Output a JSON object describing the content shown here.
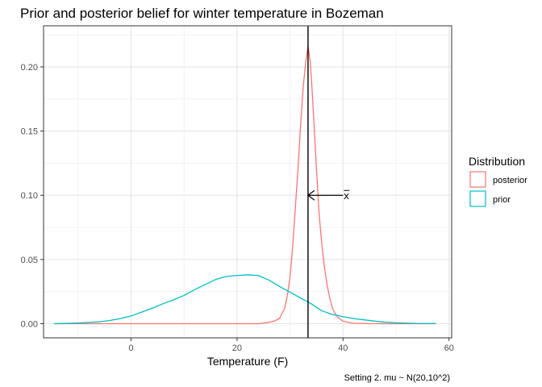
{
  "chart_data": {
    "type": "line",
    "title": "Prior and posterior belief for winter temperature in Bozeman",
    "xlabel": "Temperature (F)",
    "ylabel": "",
    "caption": "Setting 2. mu ~ N(20,10^2)",
    "xlim": [
      -16.5,
      60.5
    ],
    "ylim": [
      -0.011,
      0.232
    ],
    "x_ticks": [
      0,
      20,
      40,
      60
    ],
    "y_ticks": [
      0.0,
      0.05,
      0.1,
      0.15,
      0.2
    ],
    "y_tick_labels": [
      "0.00",
      "0.05",
      "0.10",
      "0.15",
      "0.20"
    ],
    "grid": true,
    "legend": {
      "title": "Distribution",
      "placement": "right",
      "entries": [
        {
          "label": "posterior",
          "color": "#F8766D"
        },
        {
          "label": "prior",
          "color": "#00BFC4"
        }
      ]
    },
    "vline": {
      "x": 33.4,
      "label": "x̄"
    },
    "annotation": {
      "text": "x",
      "overline": true,
      "arrow_from": [
        40,
        0.1
      ],
      "arrow_to": [
        33.4,
        0.1
      ]
    },
    "series": [
      {
        "name": "posterior",
        "color": "#F8766D",
        "x": [
          -14.5,
          -5,
          5,
          15,
          20,
          24,
          26,
          27,
          28,
          28.5,
          29,
          29.5,
          30,
          30.5,
          31,
          31.5,
          32,
          32.5,
          33,
          33.4,
          33.8,
          34.2,
          34.6,
          35,
          35.5,
          36,
          36.5,
          37,
          37.5,
          38,
          38.5,
          39,
          40,
          41,
          42,
          45,
          50,
          57.5
        ],
        "y": [
          0,
          0,
          0,
          0,
          0,
          0,
          0.001,
          0.002,
          0.004,
          0.008,
          0.012,
          0.022,
          0.036,
          0.06,
          0.09,
          0.12,
          0.155,
          0.185,
          0.205,
          0.216,
          0.205,
          0.18,
          0.15,
          0.12,
          0.085,
          0.062,
          0.044,
          0.03,
          0.02,
          0.012,
          0.008,
          0.005,
          0.002,
          0.001,
          0.0003,
          0,
          0,
          0
        ]
      },
      {
        "name": "prior",
        "color": "#00BFC4",
        "x": [
          -14.5,
          -10,
          -6,
          -4,
          -2,
          0,
          2,
          4,
          6,
          8,
          10,
          12,
          14,
          16,
          18,
          20,
          22,
          24,
          26,
          28,
          30,
          32,
          34,
          36,
          38,
          40,
          42,
          44,
          46,
          48,
          50,
          54,
          57.5
        ],
        "y": [
          0,
          0.0005,
          0.0015,
          0.0025,
          0.004,
          0.006,
          0.009,
          0.012,
          0.0155,
          0.0185,
          0.022,
          0.0265,
          0.0305,
          0.0345,
          0.0368,
          0.0376,
          0.038,
          0.0375,
          0.034,
          0.029,
          0.0245,
          0.02,
          0.0155,
          0.01,
          0.0072,
          0.0055,
          0.004,
          0.003,
          0.002,
          0.0012,
          0.0007,
          0.0002,
          0.0001
        ]
      }
    ]
  }
}
